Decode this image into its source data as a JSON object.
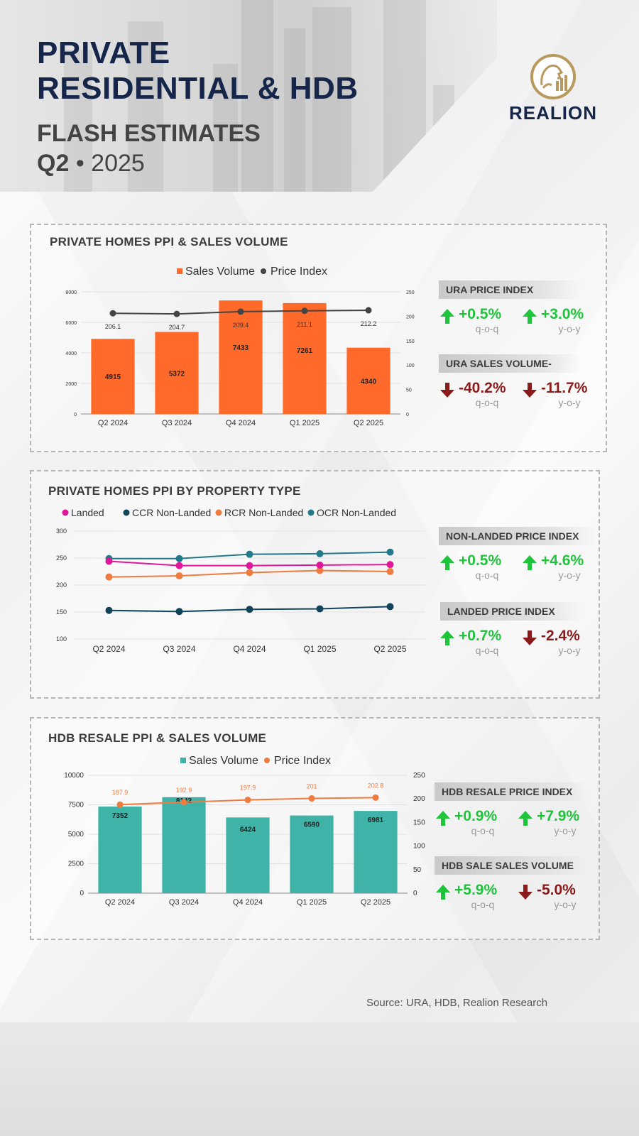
{
  "header": {
    "title_line1": "PRIVATE",
    "title_line2": "RESIDENTIAL & HDB",
    "subtitle": "FLASH ESTIMATES",
    "quarter": "Q2",
    "separator": "•",
    "year": "2025",
    "brand": "REALION"
  },
  "colors": {
    "navy": "#15264a",
    "orange_bar": "#ff6a2b",
    "teal_bar": "#3fb3a8",
    "up_green": "#1ec43a",
    "down_red": "#8b1a1a",
    "gold": "#b89a5e"
  },
  "panels": [
    {
      "title": "PRIVATE HOMES PPI & SALES VOLUME",
      "stats": [
        {
          "heading": "URA PRICE INDEX",
          "items": [
            {
              "direction": "up",
              "value": "+0.5%",
              "period": "q-o-q"
            },
            {
              "direction": "up",
              "value": "+3.0%",
              "period": "y-o-y"
            }
          ]
        },
        {
          "heading": "URA SALES VOLUME-",
          "items": [
            {
              "direction": "down",
              "value": "-40.2%",
              "period": "q-o-q"
            },
            {
              "direction": "down",
              "value": "-11.7%",
              "period": "y-o-y"
            }
          ]
        }
      ]
    },
    {
      "title": "PRIVATE HOMES PPI BY PROPERTY TYPE",
      "stats": [
        {
          "heading": "NON-LANDED PRICE INDEX",
          "items": [
            {
              "direction": "up",
              "value": "+0.5%",
              "period": "q-o-q"
            },
            {
              "direction": "up",
              "value": "+4.6%",
              "period": "y-o-y"
            }
          ]
        },
        {
          "heading": "LANDED PRICE INDEX",
          "items": [
            {
              "direction": "up",
              "value": "+0.7%",
              "period": "q-o-q"
            },
            {
              "direction": "down",
              "value": "-2.4%",
              "period": "y-o-y"
            }
          ]
        }
      ]
    },
    {
      "title": "HDB RESALE PPI & SALES VOLUME",
      "stats": [
        {
          "heading": "HDB RESALE PRICE INDEX",
          "items": [
            {
              "direction": "up",
              "value": "+0.9%",
              "period": "q-o-q"
            },
            {
              "direction": "up",
              "value": "+7.9%",
              "period": "y-o-y"
            }
          ]
        },
        {
          "heading": "HDB SALE SALES VOLUME",
          "items": [
            {
              "direction": "up",
              "value": "+5.9%",
              "period": "q-o-q"
            },
            {
              "direction": "down",
              "value": "-5.0%",
              "period": "y-o-y"
            }
          ]
        }
      ]
    }
  ],
  "source": "Source: URA, HDB,  Realion Research",
  "chart_data": [
    {
      "type": "bar",
      "title": "PRIVATE HOMES PPI & SALES VOLUME",
      "categories": [
        "Q2 2024",
        "Q3 2024",
        "Q4 2024",
        "Q1 2025",
        "Q2 2025"
      ],
      "series": [
        {
          "name": "Sales Volume",
          "kind": "bar",
          "axis": "left",
          "color": "#ff6a2b",
          "values": [
            4915,
            5372,
            7433,
            7261,
            4340
          ]
        },
        {
          "name": "Price Index",
          "kind": "line",
          "axis": "right",
          "color": "#444444",
          "values": [
            206.1,
            204.7,
            209.4,
            211.1,
            212.2
          ]
        }
      ],
      "ylim_left": [
        0,
        8000
      ],
      "yticks_left": [
        0,
        2000,
        4000,
        6000,
        8000
      ],
      "ylim_right": [
        0,
        250
      ],
      "yticks_right": [
        0,
        50,
        100,
        150,
        200,
        250
      ],
      "legend": "top-center",
      "grid": true
    },
    {
      "type": "line",
      "title": "PRIVATE HOMES PPI BY PROPERTY TYPE",
      "categories": [
        "Q2 2024",
        "Q3 2024",
        "Q4 2024",
        "Q1 2025",
        "Q2 2025"
      ],
      "series": [
        {
          "name": "Landed",
          "color": "#e0179b",
          "values": [
            244,
            236,
            236,
            237,
            238
          ]
        },
        {
          "name": "CCR Non-Landed",
          "color": "#0f4459",
          "values": [
            153,
            151,
            155,
            156,
            160
          ]
        },
        {
          "name": "RCR Non-Landed",
          "color": "#f07b3f",
          "values": [
            215,
            217,
            223,
            227,
            225
          ]
        },
        {
          "name": "OCR Non-Landed",
          "color": "#23798a",
          "values": [
            249,
            249,
            257,
            258,
            261
          ]
        }
      ],
      "ylim": [
        100,
        300
      ],
      "yticks": [
        100,
        150,
        200,
        250,
        300
      ],
      "legend": "top",
      "grid": true
    },
    {
      "type": "bar",
      "title": "HDB RESALE PPI & SALES VOLUME",
      "categories": [
        "Q2 2024",
        "Q3 2024",
        "Q4 2024",
        "Q1 2025",
        "Q2 2025"
      ],
      "series": [
        {
          "name": "Sales Volume",
          "kind": "bar",
          "axis": "left",
          "color": "#3fb3a8",
          "values": [
            7352,
            8142,
            6424,
            6590,
            6981
          ]
        },
        {
          "name": "Price Index",
          "kind": "line",
          "axis": "right",
          "color": "#f07b3f",
          "values": [
            187.9,
            192.9,
            197.9,
            201,
            202.8
          ]
        }
      ],
      "ylim_left": [
        0,
        10000
      ],
      "yticks_left": [
        0,
        2500,
        5000,
        7500,
        10000
      ],
      "ylim_right": [
        0,
        250
      ],
      "yticks_right": [
        0,
        50,
        100,
        150,
        200,
        250
      ],
      "legend": "top-center",
      "grid": true
    }
  ]
}
